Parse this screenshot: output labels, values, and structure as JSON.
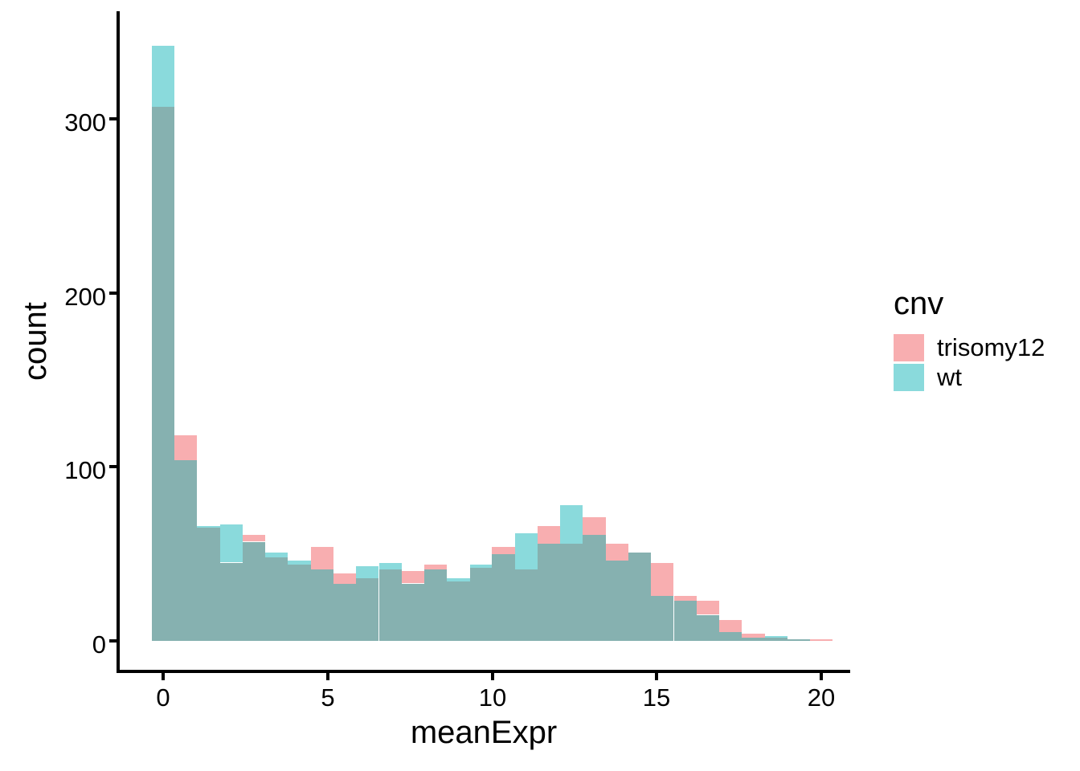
{
  "figure": {
    "background": "#ffffff",
    "text_color": "#000000",
    "axis_color": "#000000"
  },
  "legend": {
    "title": "cnv",
    "position": "right",
    "items": [
      {
        "label": "trisomy12",
        "color": "#F8AEB0"
      },
      {
        "label": "wt",
        "color": "#8ADADC"
      }
    ]
  },
  "chart_data": {
    "type": "bar",
    "subtype": "overlaid-histogram",
    "title": "",
    "xlabel": "meanExpr",
    "ylabel": "count",
    "legend_title": "cnv",
    "legend_position": "right",
    "grid": false,
    "binwidth": 0.69,
    "xlim": [
      -1.2,
      21.0
    ],
    "ylim": [
      0,
      360
    ],
    "xticks": [
      0,
      5,
      10,
      15,
      20
    ],
    "yticks": [
      0,
      100,
      200,
      300
    ],
    "x": [
      0,
      0.69,
      1.38,
      2.07,
      2.76,
      3.45,
      4.14,
      4.83,
      5.52,
      6.21,
      6.9,
      7.59,
      8.28,
      8.97,
      9.66,
      10.34,
      11.03,
      11.72,
      12.41,
      13.1,
      13.79,
      14.48,
      15.17,
      15.86,
      16.55,
      17.24,
      17.93,
      18.62,
      19.31,
      20.0
    ],
    "series": [
      {
        "name": "trisomy12",
        "color": "#F8AEB0",
        "values": [
          307,
          118,
          65,
          45,
          61,
          48,
          44,
          54,
          39,
          36,
          41,
          40,
          44,
          34,
          42,
          54,
          41,
          66,
          56,
          71,
          56,
          51,
          45,
          26,
          23,
          12,
          4,
          2,
          1,
          1
        ]
      },
      {
        "name": "wt",
        "color": "#8ADADC",
        "values": [
          342,
          104,
          66,
          67,
          57,
          51,
          46,
          41,
          33,
          43,
          45,
          33,
          41,
          36,
          44,
          50,
          62,
          56,
          78,
          61,
          46,
          51,
          26,
          23,
          15,
          5,
          2,
          3,
          1,
          0
        ]
      }
    ],
    "overlap_color": "#86B1B0"
  }
}
